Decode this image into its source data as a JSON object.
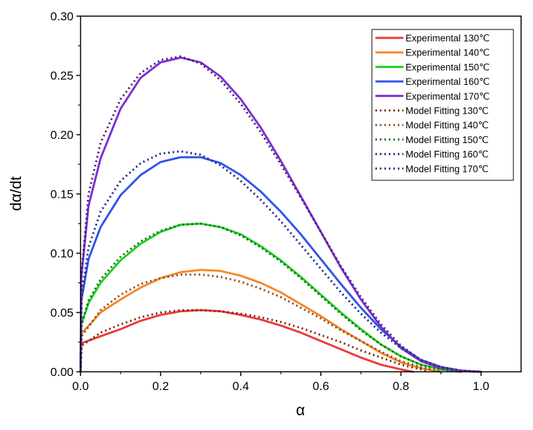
{
  "chart_data": {
    "type": "line",
    "xlabel": "α",
    "ylabel": "dα/dt",
    "xlim": [
      0.0,
      1.1
    ],
    "ylim": [
      0.0,
      0.3
    ],
    "xticks": [
      "0.0",
      "0.2",
      "0.4",
      "0.6",
      "0.8",
      "1.0"
    ],
    "yticks": [
      "0.00",
      "0.05",
      "0.10",
      "0.15",
      "0.20",
      "0.25",
      "0.30"
    ],
    "grid": false,
    "legend_position": "top-right",
    "series": [
      {
        "name": "Experimental 130℃",
        "style": "solid",
        "color": "#ee3a3a",
        "points": [
          [
            0,
            0
          ],
          [
            0.002,
            0.024
          ],
          [
            0.05,
            0.03
          ],
          [
            0.1,
            0.036
          ],
          [
            0.15,
            0.043
          ],
          [
            0.2,
            0.048
          ],
          [
            0.25,
            0.051
          ],
          [
            0.3,
            0.052
          ],
          [
            0.35,
            0.051
          ],
          [
            0.4,
            0.048
          ],
          [
            0.45,
            0.044
          ],
          [
            0.5,
            0.039
          ],
          [
            0.55,
            0.033
          ],
          [
            0.6,
            0.026
          ],
          [
            0.65,
            0.019
          ],
          [
            0.7,
            0.012
          ],
          [
            0.75,
            0.006
          ],
          [
            0.8,
            0.002
          ],
          [
            0.83,
            0.0
          ]
        ]
      },
      {
        "name": "Experimental 140℃",
        "style": "solid",
        "color": "#f5892a",
        "points": [
          [
            0,
            0
          ],
          [
            0.002,
            0.032
          ],
          [
            0.05,
            0.05
          ],
          [
            0.1,
            0.061
          ],
          [
            0.15,
            0.071
          ],
          [
            0.2,
            0.079
          ],
          [
            0.25,
            0.084
          ],
          [
            0.3,
            0.086
          ],
          [
            0.35,
            0.085
          ],
          [
            0.4,
            0.081
          ],
          [
            0.45,
            0.075
          ],
          [
            0.5,
            0.067
          ],
          [
            0.55,
            0.057
          ],
          [
            0.6,
            0.047
          ],
          [
            0.65,
            0.036
          ],
          [
            0.7,
            0.026
          ],
          [
            0.75,
            0.016
          ],
          [
            0.8,
            0.008
          ],
          [
            0.85,
            0.003
          ],
          [
            0.9,
            0.0
          ]
        ]
      },
      {
        "name": "Experimental 150℃",
        "style": "solid",
        "color": "#1fd21f",
        "points": [
          [
            0,
            0
          ],
          [
            0.002,
            0.04
          ],
          [
            0.02,
            0.058
          ],
          [
            0.05,
            0.075
          ],
          [
            0.1,
            0.094
          ],
          [
            0.15,
            0.108
          ],
          [
            0.2,
            0.118
          ],
          [
            0.25,
            0.124
          ],
          [
            0.3,
            0.125
          ],
          [
            0.35,
            0.122
          ],
          [
            0.4,
            0.116
          ],
          [
            0.45,
            0.106
          ],
          [
            0.5,
            0.094
          ],
          [
            0.55,
            0.08
          ],
          [
            0.6,
            0.065
          ],
          [
            0.65,
            0.05
          ],
          [
            0.7,
            0.036
          ],
          [
            0.75,
            0.023
          ],
          [
            0.8,
            0.013
          ],
          [
            0.85,
            0.006
          ],
          [
            0.9,
            0.002
          ],
          [
            0.95,
            0.0
          ]
        ]
      },
      {
        "name": "Experimental 160℃",
        "style": "solid",
        "color": "#2f55e8",
        "points": [
          [
            0,
            0
          ],
          [
            0.002,
            0.06
          ],
          [
            0.02,
            0.095
          ],
          [
            0.05,
            0.122
          ],
          [
            0.1,
            0.149
          ],
          [
            0.15,
            0.166
          ],
          [
            0.2,
            0.177
          ],
          [
            0.25,
            0.181
          ],
          [
            0.3,
            0.181
          ],
          [
            0.35,
            0.176
          ],
          [
            0.4,
            0.166
          ],
          [
            0.45,
            0.152
          ],
          [
            0.5,
            0.135
          ],
          [
            0.55,
            0.116
          ],
          [
            0.6,
            0.095
          ],
          [
            0.65,
            0.074
          ],
          [
            0.7,
            0.054
          ],
          [
            0.75,
            0.036
          ],
          [
            0.8,
            0.021
          ],
          [
            0.85,
            0.01
          ],
          [
            0.9,
            0.004
          ],
          [
            0.95,
            0.001
          ],
          [
            0.99,
            0.0
          ]
        ]
      },
      {
        "name": "Experimental 170℃",
        "style": "solid",
        "color": "#7a2fd6",
        "points": [
          [
            0,
            0
          ],
          [
            0.002,
            0.08
          ],
          [
            0.02,
            0.14
          ],
          [
            0.05,
            0.18
          ],
          [
            0.1,
            0.222
          ],
          [
            0.15,
            0.248
          ],
          [
            0.2,
            0.261
          ],
          [
            0.25,
            0.265
          ],
          [
            0.3,
            0.261
          ],
          [
            0.35,
            0.249
          ],
          [
            0.4,
            0.23
          ],
          [
            0.45,
            0.206
          ],
          [
            0.5,
            0.178
          ],
          [
            0.55,
            0.148
          ],
          [
            0.6,
            0.118
          ],
          [
            0.65,
            0.088
          ],
          [
            0.7,
            0.061
          ],
          [
            0.75,
            0.038
          ],
          [
            0.8,
            0.02
          ],
          [
            0.85,
            0.009
          ],
          [
            0.9,
            0.003
          ],
          [
            0.95,
            0.001
          ],
          [
            1.0,
            0.0
          ]
        ]
      },
      {
        "name": "Model Fitting 130℃",
        "style": "dotted",
        "color": "#7a2a12",
        "points": [
          [
            0,
            0
          ],
          [
            0.003,
            0.022
          ],
          [
            0.05,
            0.033
          ],
          [
            0.1,
            0.04
          ],
          [
            0.15,
            0.046
          ],
          [
            0.2,
            0.05
          ],
          [
            0.25,
            0.052
          ],
          [
            0.3,
            0.052
          ],
          [
            0.35,
            0.051
          ],
          [
            0.4,
            0.049
          ],
          [
            0.45,
            0.046
          ],
          [
            0.5,
            0.042
          ],
          [
            0.55,
            0.037
          ],
          [
            0.6,
            0.031
          ],
          [
            0.65,
            0.025
          ],
          [
            0.7,
            0.018
          ],
          [
            0.75,
            0.012
          ],
          [
            0.8,
            0.006
          ],
          [
            0.85,
            0.002
          ],
          [
            0.87,
            0.0
          ]
        ]
      },
      {
        "name": "Model Fitting 140℃",
        "style": "dotted",
        "color": "#8a4a22",
        "points": [
          [
            0,
            0
          ],
          [
            0.003,
            0.03
          ],
          [
            0.05,
            0.052
          ],
          [
            0.1,
            0.065
          ],
          [
            0.15,
            0.074
          ],
          [
            0.2,
            0.079
          ],
          [
            0.25,
            0.082
          ],
          [
            0.3,
            0.082
          ],
          [
            0.35,
            0.08
          ],
          [
            0.4,
            0.076
          ],
          [
            0.45,
            0.07
          ],
          [
            0.5,
            0.063
          ],
          [
            0.55,
            0.054
          ],
          [
            0.6,
            0.045
          ],
          [
            0.65,
            0.035
          ],
          [
            0.7,
            0.026
          ],
          [
            0.75,
            0.017
          ],
          [
            0.8,
            0.009
          ],
          [
            0.85,
            0.004
          ],
          [
            0.9,
            0.0
          ]
        ]
      },
      {
        "name": "Model Fitting 150℃",
        "style": "dotted",
        "color": "#0d6b1a",
        "points": [
          [
            0,
            0
          ],
          [
            0.003,
            0.04
          ],
          [
            0.02,
            0.06
          ],
          [
            0.05,
            0.078
          ],
          [
            0.1,
            0.097
          ],
          [
            0.15,
            0.11
          ],
          [
            0.2,
            0.119
          ],
          [
            0.25,
            0.124
          ],
          [
            0.3,
            0.125
          ],
          [
            0.35,
            0.122
          ],
          [
            0.4,
            0.115
          ],
          [
            0.45,
            0.105
          ],
          [
            0.5,
            0.093
          ],
          [
            0.55,
            0.079
          ],
          [
            0.6,
            0.064
          ],
          [
            0.65,
            0.049
          ],
          [
            0.7,
            0.035
          ],
          [
            0.75,
            0.023
          ],
          [
            0.8,
            0.013
          ],
          [
            0.85,
            0.006
          ],
          [
            0.9,
            0.002
          ],
          [
            0.95,
            0.0
          ]
        ]
      },
      {
        "name": "Model Fitting 160℃",
        "style": "dotted",
        "color": "#1b2a8c",
        "points": [
          [
            0,
            0
          ],
          [
            0.003,
            0.065
          ],
          [
            0.02,
            0.105
          ],
          [
            0.05,
            0.135
          ],
          [
            0.1,
            0.161
          ],
          [
            0.15,
            0.176
          ],
          [
            0.2,
            0.184
          ],
          [
            0.25,
            0.186
          ],
          [
            0.3,
            0.183
          ],
          [
            0.35,
            0.174
          ],
          [
            0.4,
            0.161
          ],
          [
            0.45,
            0.145
          ],
          [
            0.5,
            0.127
          ],
          [
            0.55,
            0.107
          ],
          [
            0.6,
            0.087
          ],
          [
            0.65,
            0.067
          ],
          [
            0.7,
            0.049
          ],
          [
            0.75,
            0.033
          ],
          [
            0.8,
            0.02
          ],
          [
            0.85,
            0.01
          ],
          [
            0.9,
            0.004
          ],
          [
            0.95,
            0.001
          ],
          [
            0.99,
            0.0
          ]
        ]
      },
      {
        "name": "Model Fitting 170℃",
        "style": "dotted",
        "color": "#4a1e6e",
        "points": [
          [
            0,
            0
          ],
          [
            0.003,
            0.085
          ],
          [
            0.02,
            0.15
          ],
          [
            0.05,
            0.193
          ],
          [
            0.1,
            0.23
          ],
          [
            0.15,
            0.252
          ],
          [
            0.2,
            0.263
          ],
          [
            0.25,
            0.266
          ],
          [
            0.3,
            0.26
          ],
          [
            0.35,
            0.246
          ],
          [
            0.4,
            0.226
          ],
          [
            0.45,
            0.202
          ],
          [
            0.5,
            0.175
          ],
          [
            0.55,
            0.147
          ],
          [
            0.6,
            0.118
          ],
          [
            0.65,
            0.089
          ],
          [
            0.7,
            0.063
          ],
          [
            0.75,
            0.04
          ],
          [
            0.8,
            0.022
          ],
          [
            0.85,
            0.01
          ],
          [
            0.9,
            0.004
          ],
          [
            0.95,
            0.001
          ],
          [
            1.0,
            0.0
          ]
        ]
      }
    ]
  }
}
